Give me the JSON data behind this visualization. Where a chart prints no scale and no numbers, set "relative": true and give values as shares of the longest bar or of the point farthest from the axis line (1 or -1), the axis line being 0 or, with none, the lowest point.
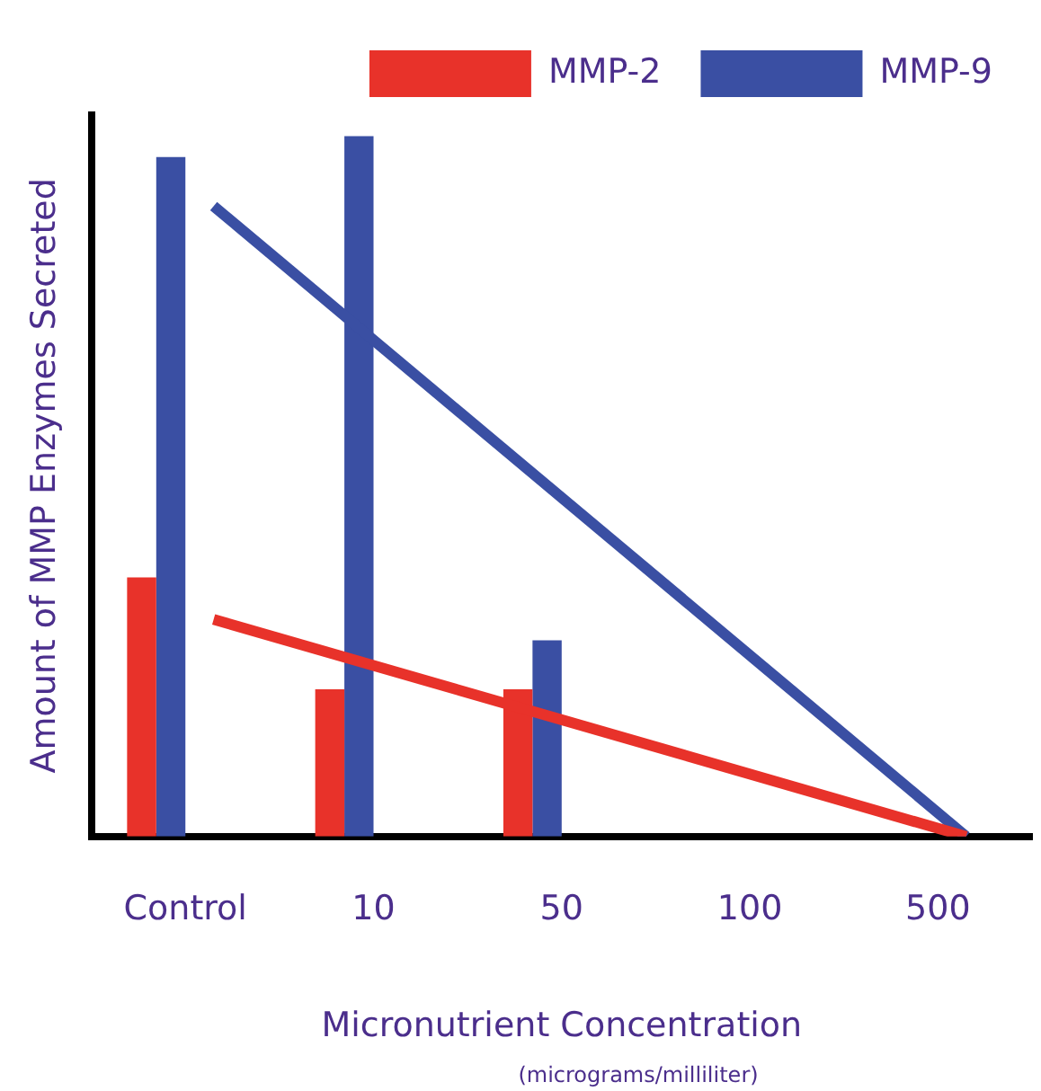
{
  "chart_data": {
    "type": "bar",
    "relative": true,
    "xlabel": "Micronutrient Concentration",
    "ylabel": "Amount of MMP Enzymes Secreted",
    "categories": [
      "Control",
      "10",
      "50",
      "100",
      "500"
    ],
    "legend": "top right",
    "grid": false,
    "series": [
      {
        "name": "MMP-2",
        "color": "#e8322a",
        "values": [
          0.37,
          0.21,
          0.21,
          null,
          null
        ]
      },
      {
        "name": "MMP-9",
        "color": "#3a4fa3",
        "values": [
          0.97,
          1,
          0.28,
          null,
          null
        ]
      },
      {
        "type": "line",
        "color": "#e8322a",
        "x": [
          "Control",
          "500"
        ],
        "values": [
          0.31,
          0
        ]
      },
      {
        "type": "line",
        "color": "#3a4fa3",
        "x": [
          "Control",
          "500"
        ],
        "values": [
          0.9,
          0
        ]
      }
    ],
    "annotations": [
      "(micrograms/milliliter)"
    ]
  }
}
